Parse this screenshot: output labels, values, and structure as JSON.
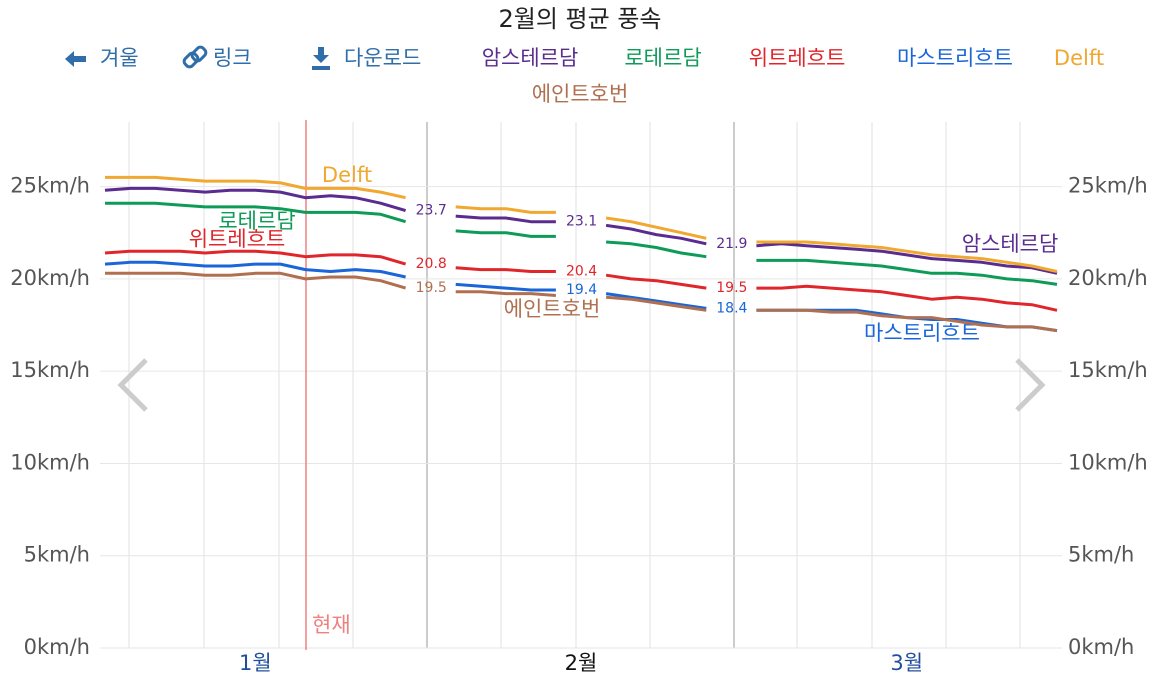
{
  "toolbar": [
    "겨울",
    "링크",
    "다운로드"
  ],
  "now_label": "현재",
  "chart_data": {
    "type": "line",
    "title": "2월의 평균 풍속",
    "categories": [
      null,
      null,
      null,
      null,
      null,
      null,
      "1월",
      null,
      null,
      null,
      null,
      null,
      null,
      null,
      null,
      null,
      null,
      null,
      null,
      "2월",
      null,
      null,
      null,
      null,
      null,
      null,
      null,
      null,
      null,
      null,
      null,
      null,
      "3월",
      null,
      null,
      null,
      null,
      null,
      null
    ],
    "ylim": [
      0,
      28.5
    ],
    "yticks": [
      {
        "value": 0,
        "label": "0km/h"
      },
      {
        "value": 5,
        "label": "5km/h"
      },
      {
        "value": 10,
        "label": "10km/h"
      },
      {
        "value": 15,
        "label": "15km/h"
      },
      {
        "value": 20,
        "label": "20km/h"
      },
      {
        "value": 25,
        "label": "25km/h"
      }
    ],
    "grid": true,
    "series": [
      {
        "name": "암스테르담",
        "color": "#5b2c8f",
        "values": [
          24.8,
          24.9,
          24.9,
          24.8,
          24.7,
          24.8,
          24.8,
          24.7,
          24.4,
          24.5,
          24.4,
          24.1,
          23.7,
          null,
          23.4,
          23.3,
          23.3,
          23.1,
          23.1,
          null,
          22.9,
          22.7,
          22.4,
          22.2,
          21.9,
          null,
          21.8,
          21.9,
          21.8,
          21.7,
          21.6,
          21.5,
          21.3,
          21.1,
          21.0,
          20.9,
          20.7,
          20.6,
          20.3
        ],
        "value_labels": [
          null,
          null,
          null,
          null,
          null,
          null,
          null,
          null,
          null,
          null,
          null,
          null,
          "23.7",
          null,
          null,
          null,
          null,
          null,
          "23.1",
          null,
          null,
          null,
          null,
          null,
          "21.9",
          null,
          null,
          null,
          null,
          null,
          null,
          null,
          null,
          null,
          null,
          null,
          null,
          null,
          null
        ]
      },
      {
        "name": "로테르담",
        "color": "#0e9b57",
        "values": [
          24.1,
          24.1,
          24.1,
          24.0,
          23.9,
          23.9,
          23.9,
          23.8,
          23.6,
          23.6,
          23.6,
          23.5,
          23.1,
          null,
          22.6,
          22.5,
          22.5,
          22.3,
          22.3,
          null,
          22.0,
          21.9,
          21.7,
          21.4,
          21.2,
          null,
          21.0,
          21.0,
          21.0,
          20.9,
          20.8,
          20.7,
          20.5,
          20.3,
          20.3,
          20.2,
          20.0,
          19.9,
          19.7
        ]
      },
      {
        "name": "위트레흐트",
        "color": "#e0262b",
        "values": [
          21.4,
          21.5,
          21.5,
          21.5,
          21.4,
          21.5,
          21.5,
          21.4,
          21.2,
          21.3,
          21.3,
          21.2,
          20.8,
          null,
          20.6,
          20.5,
          20.5,
          20.4,
          20.4,
          null,
          20.2,
          20.0,
          19.9,
          19.7,
          19.5,
          null,
          19.5,
          19.5,
          19.6,
          19.5,
          19.4,
          19.3,
          19.1,
          18.9,
          19.0,
          18.9,
          18.7,
          18.6,
          18.3
        ],
        "value_labels": [
          null,
          null,
          null,
          null,
          null,
          null,
          null,
          null,
          null,
          null,
          null,
          null,
          "20.8",
          null,
          null,
          null,
          null,
          null,
          "20.4",
          null,
          null,
          null,
          null,
          null,
          "19.5",
          null,
          null,
          null,
          null,
          null,
          null,
          null,
          null,
          null,
          null,
          null,
          null,
          null,
          null
        ]
      },
      {
        "name": "마스트리흐트",
        "color": "#1a66d9",
        "values": [
          20.8,
          20.9,
          20.9,
          20.8,
          20.7,
          20.7,
          20.8,
          20.8,
          20.5,
          20.4,
          20.5,
          20.4,
          20.1,
          null,
          19.7,
          19.6,
          19.5,
          19.4,
          19.4,
          null,
          19.2,
          19.0,
          18.8,
          18.6,
          18.4,
          null,
          18.3,
          18.3,
          18.3,
          18.3,
          18.3,
          18.1,
          17.9,
          17.8,
          17.8,
          17.6,
          17.4,
          17.4,
          17.2
        ],
        "value_labels": [
          null,
          null,
          null,
          null,
          null,
          null,
          null,
          null,
          null,
          null,
          null,
          null,
          null,
          null,
          null,
          null,
          null,
          null,
          "19.4",
          null,
          null,
          null,
          null,
          null,
          "18.4",
          null,
          null,
          null,
          null,
          null,
          null,
          null,
          null,
          null,
          null,
          null,
          null,
          null,
          null
        ]
      },
      {
        "name": "Delft",
        "color": "#f0a830",
        "values": [
          25.5,
          25.5,
          25.5,
          25.4,
          25.3,
          25.3,
          25.3,
          25.2,
          24.9,
          24.9,
          24.9,
          24.7,
          24.4,
          null,
          23.9,
          23.8,
          23.8,
          23.6,
          23.6,
          null,
          23.3,
          23.1,
          22.8,
          22.5,
          22.2,
          null,
          22.0,
          22.0,
          22.0,
          21.9,
          21.8,
          21.7,
          21.5,
          21.3,
          21.2,
          21.1,
          20.9,
          20.7,
          20.4
        ]
      },
      {
        "name": "에인트호번",
        "color": "#b07050",
        "values": [
          20.3,
          20.3,
          20.3,
          20.3,
          20.2,
          20.2,
          20.3,
          20.3,
          20.0,
          20.1,
          20.1,
          19.9,
          19.5,
          null,
          19.3,
          19.3,
          19.2,
          19.2,
          19.1,
          null,
          19.0,
          18.9,
          18.7,
          18.5,
          18.3,
          null,
          18.3,
          18.3,
          18.3,
          18.2,
          18.2,
          18.0,
          17.9,
          17.9,
          17.7,
          17.5,
          17.4,
          17.4,
          17.2
        ],
        "value_labels": [
          null,
          null,
          null,
          null,
          null,
          null,
          null,
          null,
          null,
          null,
          null,
          null,
          "19.5",
          null,
          null,
          null,
          null,
          null,
          null,
          null,
          null,
          null,
          null,
          null,
          null,
          null,
          null,
          null,
          null,
          null,
          null,
          null,
          null,
          null,
          null,
          null,
          null,
          null,
          null
        ]
      }
    ]
  }
}
